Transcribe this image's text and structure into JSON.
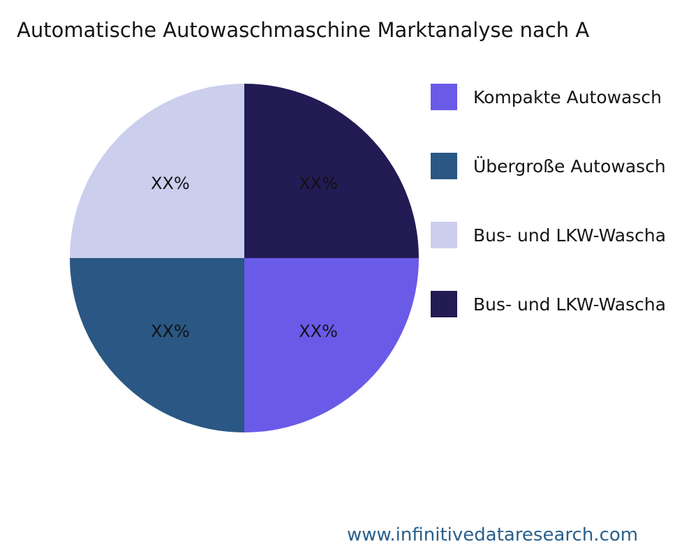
{
  "title": "Automatische Autowaschmaschine Marktanalyse nach A",
  "footer": {
    "url": "www.infinitivedataresearch.com"
  },
  "chart_data": {
    "type": "pie",
    "title": "Automatische Autowaschmaschine Marktanalyse nach A",
    "start_angle_deg": 0,
    "direction": "clockwise",
    "legend_position": "right",
    "grid": false,
    "slices": [
      {
        "label": "Kompakte Autowasch",
        "value": 25,
        "display": "XX%",
        "color": "#6A5AE8"
      },
      {
        "label": "Übergroße Autowasch",
        "value": 25,
        "display": "XX%",
        "color": "#2A5783"
      },
      {
        "label": "Bus- und LKW-Wascha",
        "value": 25,
        "display": "XX%",
        "color": "#CBCEED"
      },
      {
        "label": "Bus- und LKW-Wascha",
        "value": 25,
        "display": "XX%",
        "color": "#221B54"
      }
    ]
  }
}
